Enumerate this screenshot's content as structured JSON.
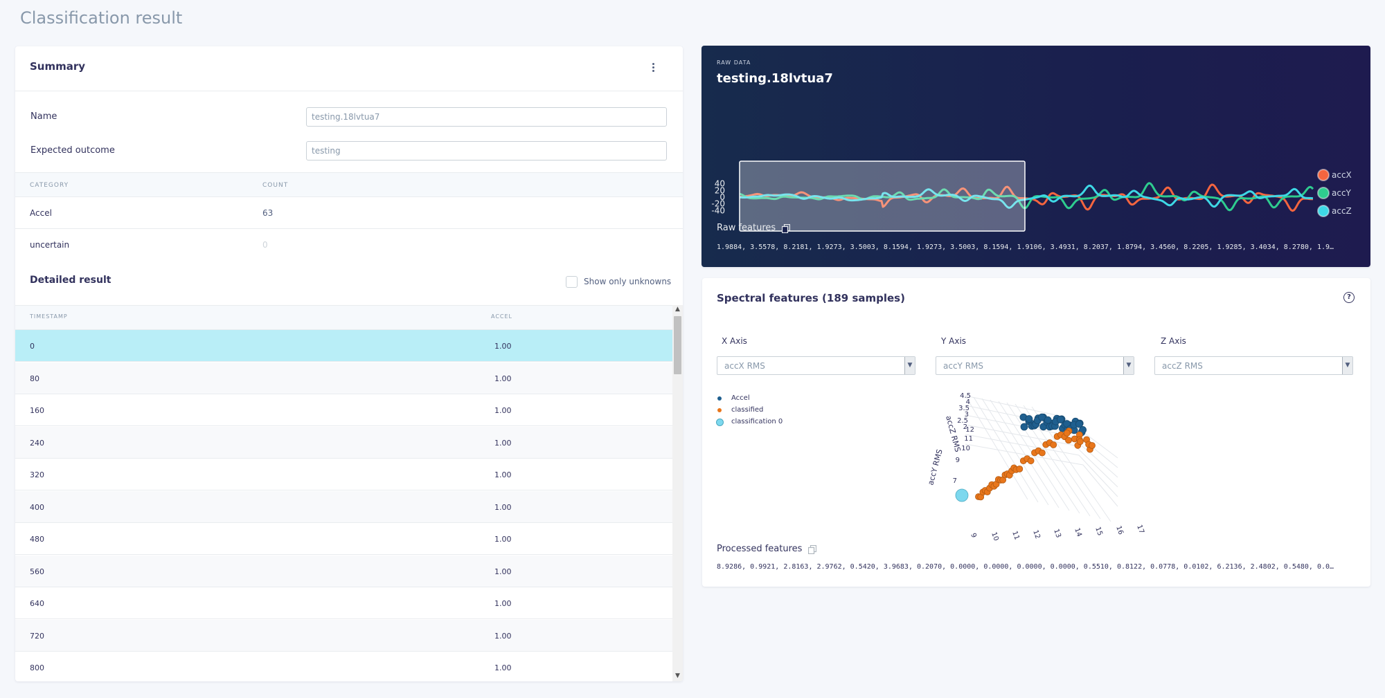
{
  "page_title": "Classification result",
  "summary": {
    "title": "Summary",
    "name_label": "Name",
    "name_value": "testing.18lvtua7",
    "expected_label": "Expected outcome",
    "expected_value": "testing",
    "category_header": "CATEGORY",
    "count_header": "COUNT",
    "categories": [
      {
        "name": "Accel",
        "count": "63"
      },
      {
        "name": "uncertain",
        "count": "0"
      }
    ]
  },
  "detailed": {
    "title": "Detailed result",
    "show_unknowns_label": "Show only unknowns",
    "timestamp_header": "TIMESTAMP",
    "accel_header": "ACCEL",
    "rows": [
      {
        "timestamp": "0",
        "accel": "1.00"
      },
      {
        "timestamp": "80",
        "accel": "1.00"
      },
      {
        "timestamp": "160",
        "accel": "1.00"
      },
      {
        "timestamp": "240",
        "accel": "1.00"
      },
      {
        "timestamp": "320",
        "accel": "1.00"
      },
      {
        "timestamp": "400",
        "accel": "1.00"
      },
      {
        "timestamp": "480",
        "accel": "1.00"
      },
      {
        "timestamp": "560",
        "accel": "1.00"
      },
      {
        "timestamp": "640",
        "accel": "1.00"
      },
      {
        "timestamp": "720",
        "accel": "1.00"
      },
      {
        "timestamp": "800",
        "accel": "1.00"
      }
    ]
  },
  "raw_data": {
    "eyebrow": "RAW DATA",
    "title": "testing.18lvtua7",
    "features_label": "Raw features",
    "features_values": "1.9884, 3.5578, 8.2181, 1.9273, 3.5003, 8.1594, 1.9273, 3.5003, 8.1594, 1.9106, 3.4931, 8.2037, 1.8794, 3.4560, 8.2205, 1.9285, 3.4034, 8.2780, 1.9…",
    "colors": {
      "accX": "#f5653f",
      "accY": "#2ecc8f",
      "accZ": "#3ed8e6"
    }
  },
  "chart_data": [
    {
      "type": "line",
      "yticks": [
        "40",
        "20",
        "0",
        "-20",
        "-40"
      ],
      "ylim": [
        -50,
        50
      ],
      "legend_position": "right",
      "series": [
        {
          "name": "accX"
        },
        {
          "name": "accY"
        },
        {
          "name": "accZ"
        }
      ]
    },
    {
      "type": "scatter",
      "zlabel": "accZ RMS",
      "ylabel": "accY RMS",
      "z_ticks": [
        "4.5",
        "4",
        "3.5",
        "3",
        "2.5",
        "2"
      ],
      "y_ticks": [
        "12",
        "11",
        "10",
        "9",
        "7"
      ],
      "x_ticks": [
        "9",
        "10",
        "11",
        "12",
        "13",
        "14",
        "15",
        "16",
        "17"
      ],
      "legend": [
        "Accel",
        "classified",
        "classification 0"
      ],
      "colors": {
        "Accel": "#1f5f8f",
        "classified": "#e8761b",
        "classification 0": "#7dd8ee"
      }
    }
  ],
  "spectral": {
    "title": "Spectral features (189 samples)",
    "x_axis_label": "X Axis",
    "y_axis_label": "Y Axis",
    "z_axis_label": "Z Axis",
    "x_axis_value": "accX RMS",
    "y_axis_value": "accY RMS",
    "z_axis_value": "accZ RMS",
    "processed_label": "Processed features",
    "processed_values": "8.9286, 0.9921, 2.8163, 2.9762, 0.5420, 3.9683, 0.2070, 0.0000, 0.0000, 0.0000, 0.0000, 0.5510, 0.8122, 0.0778, 0.0102, 6.2136, 2.4802, 0.5480, 0.0…"
  }
}
